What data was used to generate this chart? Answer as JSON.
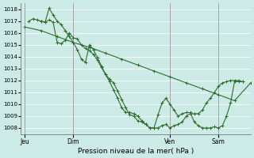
{
  "bg_color": "#cceae6",
  "grid_color": "#ffffff",
  "line_color": "#2d6e2d",
  "xlabel": "Pression niveau de la mer( hPa )",
  "ylim": [
    1007.5,
    1018.5
  ],
  "yticks": [
    1008,
    1009,
    1010,
    1011,
    1012,
    1013,
    1014,
    1015,
    1016,
    1017,
    1018
  ],
  "xtick_labels": [
    "Jeu",
    "Dim",
    "Ven",
    "Sam"
  ],
  "xtick_positions": [
    0,
    12,
    36,
    48
  ],
  "vline_positions": [
    0,
    12,
    36,
    48
  ],
  "xlim": [
    -1,
    56
  ],
  "series1_x": [
    0,
    4,
    8,
    12,
    16,
    20,
    24,
    28,
    32,
    36,
    40,
    44,
    48,
    52,
    56
  ],
  "series1_y": [
    1016.5,
    1016.2,
    1015.7,
    1015.2,
    1014.8,
    1014.3,
    1013.8,
    1013.3,
    1012.8,
    1012.3,
    1011.8,
    1011.3,
    1010.8,
    1010.3,
    1011.8
  ],
  "series2_x": [
    1,
    2,
    3,
    4,
    5,
    6,
    7,
    8,
    9,
    10,
    11,
    12,
    13,
    14,
    15,
    16,
    17,
    18,
    19,
    20,
    21,
    22,
    23,
    24,
    25,
    26,
    27,
    28,
    29,
    30,
    31,
    32,
    33,
    34,
    35,
    36,
    37,
    38,
    39,
    40,
    41,
    42,
    43,
    44,
    45,
    46,
    47,
    48,
    49,
    50,
    51,
    52,
    53,
    54
  ],
  "series2_y": [
    1017.0,
    1017.2,
    1017.1,
    1017.0,
    1016.9,
    1017.1,
    1016.9,
    1015.2,
    1015.1,
    1015.4,
    1016.0,
    1015.6,
    1015.5,
    1015.0,
    1014.7,
    1014.5,
    1014.2,
    1013.7,
    1013.1,
    1012.5,
    1011.9,
    1011.2,
    1010.5,
    1009.7,
    1009.3,
    1009.3,
    1009.2,
    1009.0,
    1008.6,
    1008.3,
    1008.0,
    1008.0,
    1008.0,
    1008.2,
    1008.3,
    1008.0,
    1008.2,
    1008.3,
    1008.5,
    1009.0,
    1009.2,
    1009.2,
    1009.2,
    1009.5,
    1010.1,
    1010.5,
    1011.0,
    1011.5,
    1011.8,
    1011.9,
    1012.0,
    1012.0,
    1012.0,
    1011.9
  ],
  "series3_x": [
    4,
    5,
    6,
    7,
    8,
    9,
    10,
    11,
    12,
    13,
    14,
    15,
    16,
    17,
    18,
    19,
    20,
    21,
    22,
    23,
    24,
    25,
    26,
    27,
    28,
    29,
    30,
    31,
    32,
    33,
    34,
    35,
    36,
    37,
    38,
    39,
    40,
    41,
    42,
    43,
    44,
    45,
    46,
    47,
    48,
    49,
    50,
    51,
    52,
    53,
    54
  ],
  "series3_y": [
    1017.0,
    1016.9,
    1018.1,
    1017.5,
    1017.0,
    1016.7,
    1016.2,
    1015.7,
    1015.2,
    1014.6,
    1013.8,
    1013.5,
    1015.0,
    1014.6,
    1013.9,
    1013.2,
    1012.5,
    1012.1,
    1011.8,
    1011.1,
    1010.4,
    1009.7,
    1009.1,
    1009.0,
    1008.6,
    1008.5,
    1008.3,
    1008.0,
    1008.0,
    1009.1,
    1010.1,
    1010.5,
    1010.0,
    1009.5,
    1009.0,
    1009.2,
    1009.3,
    1009.3,
    1008.5,
    1008.2,
    1008.0,
    1008.0,
    1008.0,
    1008.1,
    1008.0,
    1008.2,
    1009.0,
    1010.1,
    1011.9,
    1011.9,
    1011.9
  ]
}
